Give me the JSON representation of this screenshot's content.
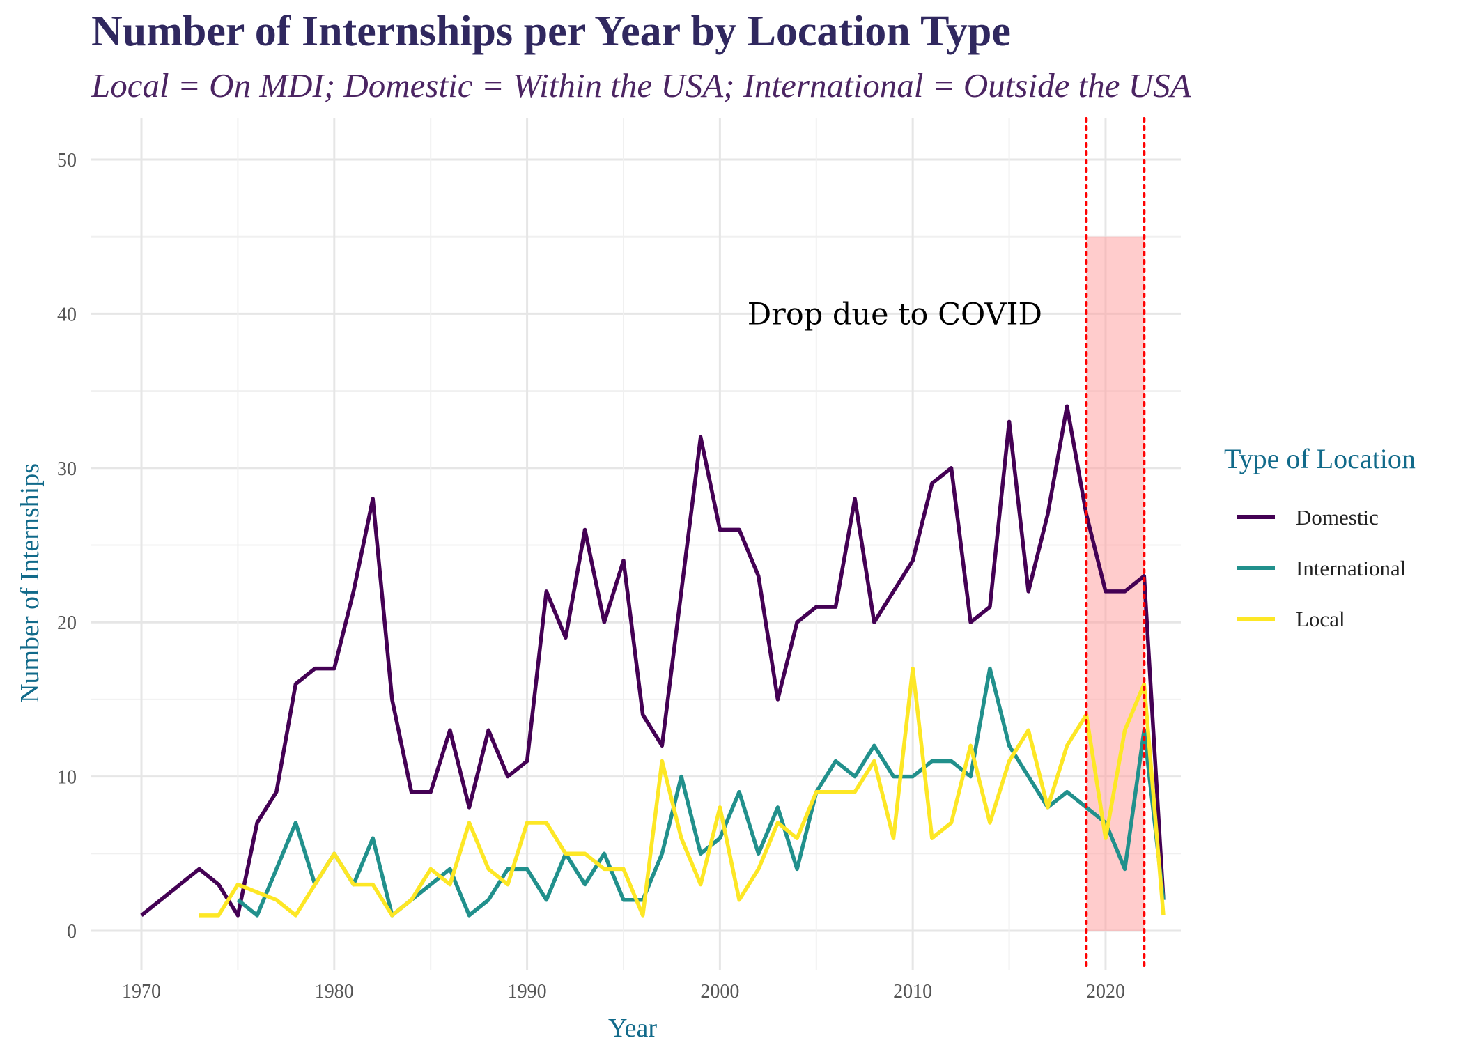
{
  "chart_data": {
    "type": "line",
    "title": "Number of Internships per Year by Location Type",
    "subtitle": "Local = On MDI; Domestic = Within the USA; International = Outside the USA",
    "xlabel": "Year",
    "ylabel": "Number of Internships",
    "xlim": [
      1970,
      2023
    ],
    "ylim": [
      0,
      50
    ],
    "x_ticks": [
      1970,
      1980,
      1990,
      2000,
      2010,
      2020
    ],
    "y_ticks": [
      0,
      10,
      20,
      30,
      40,
      50
    ],
    "grid": true,
    "legend": {
      "title": "Type of Location",
      "position": "right"
    },
    "annotations": [
      {
        "text": "Drop due to COVID",
        "x": 2010,
        "y": 40
      },
      {
        "type": "shaded_region",
        "x": [
          2019,
          2022
        ],
        "y": [
          0,
          45
        ],
        "color": "#ff9999"
      },
      {
        "type": "vline",
        "x": 2019,
        "style": "dotted",
        "color": "#ff0000"
      },
      {
        "type": "vline",
        "x": 2022,
        "style": "dotted",
        "color": "#ff0000"
      }
    ],
    "series": [
      {
        "name": "Domestic",
        "color": "#440154",
        "points": [
          [
            1970,
            1
          ],
          [
            1973,
            4
          ],
          [
            1974,
            3
          ],
          [
            1975,
            1
          ],
          [
            1976,
            7
          ],
          [
            1977,
            9
          ],
          [
            1978,
            16
          ],
          [
            1979,
            17
          ],
          [
            1980,
            17
          ],
          [
            1981,
            22
          ],
          [
            1982,
            28
          ],
          [
            1983,
            15
          ],
          [
            1984,
            9
          ],
          [
            1985,
            9
          ],
          [
            1986,
            13
          ],
          [
            1987,
            8
          ],
          [
            1988,
            13
          ],
          [
            1989,
            10
          ],
          [
            1990,
            11
          ],
          [
            1991,
            22
          ],
          [
            1992,
            19
          ],
          [
            1993,
            26
          ],
          [
            1994,
            20
          ],
          [
            1995,
            24
          ],
          [
            1996,
            14
          ],
          [
            1997,
            12
          ],
          [
            1998,
            22
          ],
          [
            1999,
            32
          ],
          [
            2000,
            26
          ],
          [
            2001,
            26
          ],
          [
            2002,
            23
          ],
          [
            2003,
            15
          ],
          [
            2004,
            20
          ],
          [
            2005,
            21
          ],
          [
            2006,
            21
          ],
          [
            2007,
            28
          ],
          [
            2008,
            20
          ],
          [
            2009,
            22
          ],
          [
            2010,
            24
          ],
          [
            2011,
            29
          ],
          [
            2012,
            30
          ],
          [
            2013,
            20
          ],
          [
            2014,
            21
          ],
          [
            2015,
            33
          ],
          [
            2016,
            22
          ],
          [
            2017,
            27
          ],
          [
            2018,
            34
          ],
          [
            2019,
            27
          ],
          [
            2020,
            22
          ],
          [
            2021,
            22
          ],
          [
            2022,
            23
          ],
          [
            2023,
            2
          ]
        ]
      },
      {
        "name": "International",
        "color": "#21908c",
        "points": [
          [
            1975,
            2
          ],
          [
            1976,
            1
          ],
          [
            1977,
            4
          ],
          [
            1978,
            7
          ],
          [
            1979,
            3
          ],
          [
            1980,
            5
          ],
          [
            1981,
            3
          ],
          [
            1982,
            6
          ],
          [
            1983,
            1
          ],
          [
            1984,
            2
          ],
          [
            1985,
            3
          ],
          [
            1986,
            4
          ],
          [
            1987,
            1
          ],
          [
            1988,
            2
          ],
          [
            1989,
            4
          ],
          [
            1990,
            4
          ],
          [
            1991,
            2
          ],
          [
            1992,
            5
          ],
          [
            1993,
            3
          ],
          [
            1994,
            5
          ],
          [
            1995,
            2
          ],
          [
            1996,
            2
          ],
          [
            1997,
            5
          ],
          [
            1998,
            10
          ],
          [
            1999,
            5
          ],
          [
            2000,
            6
          ],
          [
            2001,
            9
          ],
          [
            2002,
            5
          ],
          [
            2003,
            8
          ],
          [
            2004,
            4
          ],
          [
            2005,
            9
          ],
          [
            2006,
            11
          ],
          [
            2007,
            10
          ],
          [
            2008,
            12
          ],
          [
            2009,
            10
          ],
          [
            2010,
            10
          ],
          [
            2011,
            11
          ],
          [
            2012,
            11
          ],
          [
            2013,
            10
          ],
          [
            2014,
            17
          ],
          [
            2015,
            12
          ],
          [
            2016,
            10
          ],
          [
            2017,
            8
          ],
          [
            2018,
            9
          ],
          [
            2019,
            8
          ],
          [
            2020,
            7
          ],
          [
            2021,
            4
          ],
          [
            2022,
            13
          ],
          [
            2023,
            2
          ]
        ]
      },
      {
        "name": "Local",
        "color": "#fde725",
        "points": [
          [
            1973,
            1
          ],
          [
            1974,
            1
          ],
          [
            1975,
            3
          ],
          [
            1976,
            2.5
          ],
          [
            1977,
            2
          ],
          [
            1978,
            1
          ],
          [
            1979,
            3
          ],
          [
            1980,
            5
          ],
          [
            1981,
            3
          ],
          [
            1982,
            3
          ],
          [
            1983,
            1
          ],
          [
            1984,
            2
          ],
          [
            1985,
            4
          ],
          [
            1986,
            3
          ],
          [
            1987,
            7
          ],
          [
            1988,
            4
          ],
          [
            1989,
            3
          ],
          [
            1990,
            7
          ],
          [
            1991,
            7
          ],
          [
            1992,
            5
          ],
          [
            1993,
            5
          ],
          [
            1994,
            4
          ],
          [
            1995,
            4
          ],
          [
            1996,
            1
          ],
          [
            1997,
            11
          ],
          [
            1998,
            6
          ],
          [
            1999,
            3
          ],
          [
            2000,
            8
          ],
          [
            2001,
            2
          ],
          [
            2002,
            4
          ],
          [
            2003,
            7
          ],
          [
            2004,
            6
          ],
          [
            2005,
            9
          ],
          [
            2006,
            9
          ],
          [
            2007,
            9
          ],
          [
            2008,
            11
          ],
          [
            2009,
            6
          ],
          [
            2010,
            17
          ],
          [
            2011,
            6
          ],
          [
            2012,
            7
          ],
          [
            2013,
            12
          ],
          [
            2014,
            7
          ],
          [
            2015,
            11
          ],
          [
            2016,
            13
          ],
          [
            2017,
            8
          ],
          [
            2018,
            12
          ],
          [
            2019,
            14
          ],
          [
            2020,
            6
          ],
          [
            2021,
            13
          ],
          [
            2022,
            16
          ],
          [
            2023,
            1
          ]
        ]
      }
    ]
  }
}
